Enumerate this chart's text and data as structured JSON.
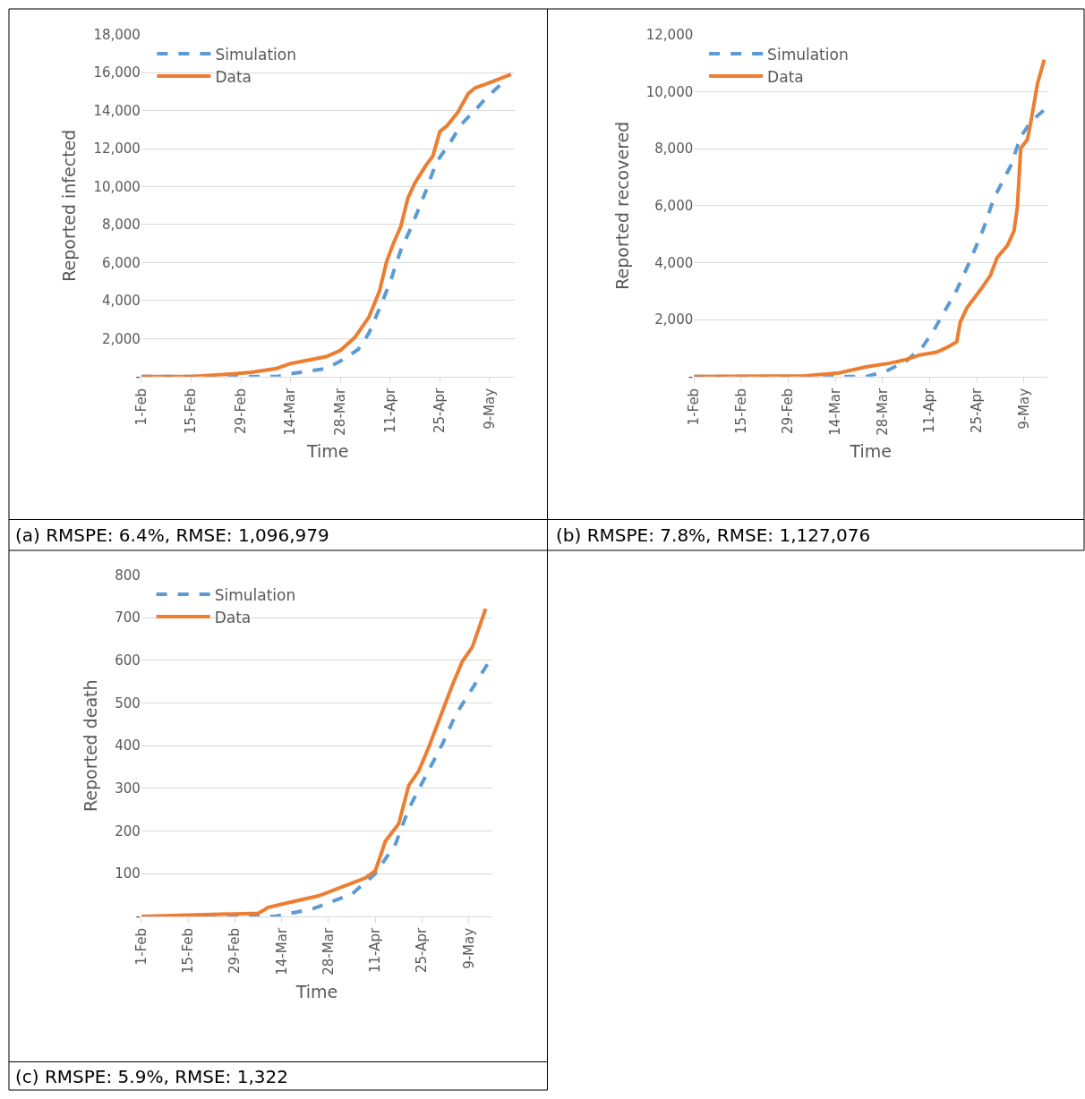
{
  "chart_data": [
    {
      "type": "line",
      "ylabel": "Reported infected",
      "xlabel": "Time",
      "legend": "top left",
      "grid": "y",
      "marker": "none",
      "xlim": [
        "--02-01",
        "--05-16"
      ],
      "ylim": [
        0,
        18000
      ],
      "xticks": [
        {
          "value": "--02-01",
          "label": "1-Feb"
        },
        {
          "value": "--02-15",
          "label": "15-Feb"
        },
        {
          "value": "--02-29",
          "label": "29-Feb"
        },
        {
          "value": "--03-14",
          "label": "14-Mar"
        },
        {
          "value": "--03-28",
          "label": "28-Mar"
        },
        {
          "value": "--04-11",
          "label": "11-Apr"
        },
        {
          "value": "--04-25",
          "label": "25-Apr"
        },
        {
          "value": "--05-09",
          "label": "9-May"
        }
      ],
      "yticks": [
        {
          "value": 0,
          "label": "-"
        },
        {
          "value": 2000,
          "label": "2,000"
        },
        {
          "value": 4000,
          "label": "4,000"
        },
        {
          "value": 6000,
          "label": "6,000"
        },
        {
          "value": 8000,
          "label": "8,000"
        },
        {
          "value": 10000,
          "label": "10,000"
        },
        {
          "value": 12000,
          "label": "12,000"
        },
        {
          "value": 14000,
          "label": "14,000"
        },
        {
          "value": 16000,
          "label": "16,000"
        },
        {
          "value": 18000,
          "label": "18,000"
        }
      ],
      "series": [
        {
          "name": "Simulation",
          "color": "#5b9bd5",
          "line_style": "dashed",
          "x": [
            "--02-01",
            "--03-02",
            "--03-10",
            "--03-14",
            "--03-24",
            "--03-28",
            "--04-02",
            "--04-05",
            "--04-08",
            "--04-11",
            "--04-14",
            "--04-17",
            "--04-21",
            "--04-24",
            "--04-28",
            "--05-01",
            "--05-05",
            "--05-08",
            "--05-12"
          ],
          "values": [
            0,
            0,
            0,
            150,
            430,
            820,
            1430,
            2280,
            3580,
            4970,
            6660,
            7890,
            9740,
            11270,
            12350,
            13270,
            14040,
            14660,
            15350
          ]
        },
        {
          "name": "Data",
          "color": "#ed7d31",
          "line_style": "solid",
          "x": [
            "--02-01",
            "--02-15",
            "--02-25",
            "--03-03",
            "--03-10",
            "--03-14",
            "--03-24",
            "--03-28",
            "--04-01",
            "--04-05",
            "--04-08",
            "--04-10",
            "--04-12",
            "--04-14",
            "--04-16",
            "--04-18",
            "--04-21",
            "--04-23",
            "--04-25",
            "--04-27",
            "--04-30",
            "--05-03",
            "--05-05",
            "--05-08",
            "--05-15"
          ],
          "values": [
            0,
            5,
            120,
            230,
            430,
            690,
            1050,
            1380,
            2050,
            3120,
            4500,
            6050,
            7050,
            7900,
            9400,
            10200,
            11100,
            11600,
            12900,
            13200,
            13900,
            14900,
            15200,
            15400,
            15900
          ]
        }
      ],
      "annotations": [
        "(a) RMSPE: 6.4%, RMSE: 1,096,979"
      ]
    },
    {
      "type": "line",
      "ylabel": "Reported recovered",
      "xlabel": "Time",
      "legend": "top left",
      "grid": "y",
      "marker": "none",
      "xlim": [
        "--02-01",
        "--05-16"
      ],
      "ylim": [
        0,
        12000
      ],
      "xticks": [
        {
          "value": "--02-01",
          "label": "1-Feb"
        },
        {
          "value": "--02-15",
          "label": "15-Feb"
        },
        {
          "value": "--02-29",
          "label": "29-Feb"
        },
        {
          "value": "--03-14",
          "label": "14-Mar"
        },
        {
          "value": "--03-28",
          "label": "28-Mar"
        },
        {
          "value": "--04-11",
          "label": "11-Apr"
        },
        {
          "value": "--04-25",
          "label": "25-Apr"
        },
        {
          "value": "--05-09",
          "label": "9-May"
        }
      ],
      "yticks": [
        {
          "value": 0,
          "label": "-"
        },
        {
          "value": 2000,
          "label": "2,000"
        },
        {
          "value": 4000,
          "label": "4,000"
        },
        {
          "value": 6000,
          "label": "6,000"
        },
        {
          "value": 8000,
          "label": "8,000"
        },
        {
          "value": 10000,
          "label": "10,000"
        },
        {
          "value": 12000,
          "label": "12,000"
        }
      ],
      "series": [
        {
          "name": "Simulation",
          "color": "#5b9bd5",
          "line_style": "dashed",
          "x": [
            "--02-01",
            "--03-23",
            "--03-29",
            "--04-04",
            "--04-09",
            "--04-12",
            "--04-15",
            "--04-19",
            "--04-23",
            "--04-27",
            "--04-30",
            "--05-05",
            "--05-08",
            "--05-11",
            "--05-15"
          ],
          "values": [
            0,
            0,
            190,
            550,
            1070,
            1590,
            2210,
            3040,
            4070,
            5210,
            6250,
            7390,
            8420,
            8940,
            9360
          ]
        },
        {
          "name": "Data",
          "color": "#ed7d31",
          "line_style": "solid",
          "x": [
            "--02-01",
            "--03-05",
            "--03-15",
            "--03-23",
            "--03-30",
            "--04-04",
            "--04-08",
            "--04-13",
            "--04-16",
            "--04-19",
            "--04-20",
            "--04-22",
            "--04-26",
            "--04-29",
            "--05-01",
            "--05-04",
            "--05-06",
            "--05-07",
            "--05-08",
            "--05-10",
            "--05-11",
            "--05-13",
            "--05-15"
          ],
          "values": [
            0,
            30,
            130,
            340,
            470,
            600,
            760,
            860,
            1020,
            1220,
            1900,
            2410,
            3040,
            3550,
            4180,
            4590,
            5110,
            5940,
            8010,
            8320,
            8940,
            10290,
            11120
          ]
        }
      ],
      "annotations": [
        "(b) RMSPE: 7.8%, RMSE: 1,127,076"
      ]
    },
    {
      "type": "line",
      "ylabel": "Reported death",
      "xlabel": "Time",
      "legend": "top left",
      "grid": "y",
      "marker": "none",
      "xlim": [
        "--02-01",
        "--05-16"
      ],
      "ylim": [
        0,
        800
      ],
      "xticks": [
        {
          "value": "--02-01",
          "label": "1-Feb"
        },
        {
          "value": "--02-15",
          "label": "15-Feb"
        },
        {
          "value": "--02-29",
          "label": "29-Feb"
        },
        {
          "value": "--03-14",
          "label": "14-Mar"
        },
        {
          "value": "--03-28",
          "label": "28-Mar"
        },
        {
          "value": "--04-11",
          "label": "11-Apr"
        },
        {
          "value": "--04-25",
          "label": "25-Apr"
        },
        {
          "value": "--05-09",
          "label": "9-May"
        }
      ],
      "yticks": [
        {
          "value": 0,
          "label": "-"
        },
        100,
        200,
        300,
        400,
        500,
        600,
        700,
        800
      ],
      "series": [
        {
          "name": "Simulation",
          "color": "#5b9bd5",
          "line_style": "dashed",
          "x": [
            "--02-01",
            "--03-12",
            "--03-23",
            "--04-04",
            "--04-11",
            "--04-17",
            "--04-21",
            "--04-26",
            "--05-01",
            "--05-05",
            "--05-10",
            "--05-15"
          ],
          "values": [
            0,
            0,
            17,
            52,
            100,
            169,
            252,
            328,
            403,
            472,
            534,
            597
          ]
        },
        {
          "name": "Data",
          "color": "#ed7d31",
          "line_style": "solid",
          "x": [
            "--02-01",
            "--02-15",
            "--03-07",
            "--03-10",
            "--03-17",
            "--03-25",
            "--04-02",
            "--04-08",
            "--04-11",
            "--04-14",
            "--04-18",
            "--04-21",
            "--04-24",
            "--04-27",
            "--05-02",
            "--05-04",
            "--05-07",
            "--05-10",
            "--05-14"
          ],
          "values": [
            0,
            3,
            7,
            21,
            34,
            48,
            72,
            90,
            107,
            176,
            217,
            307,
            341,
            397,
            500,
            541,
            597,
            631,
            721
          ]
        }
      ],
      "annotations": [
        "(c) RMSPE: 5.9%, RMSE: 1,322"
      ]
    }
  ]
}
